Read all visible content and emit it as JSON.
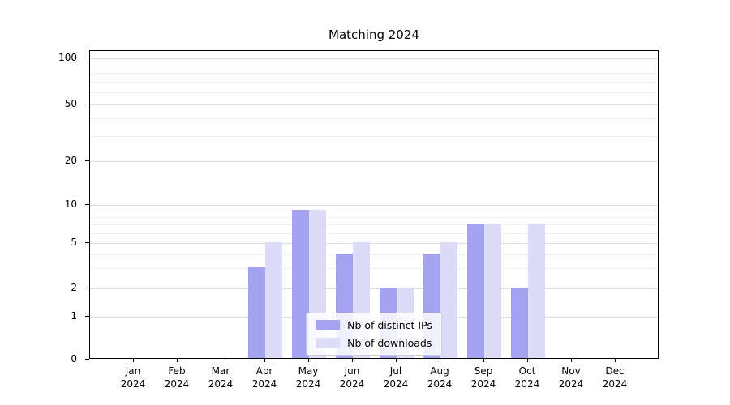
{
  "chart_data": {
    "type": "bar",
    "title": "Matching 2024",
    "categories": [
      "Jan",
      "Feb",
      "Mar",
      "Apr",
      "May",
      "Jun",
      "Jul",
      "Aug",
      "Sep",
      "Oct",
      "Nov",
      "Dec"
    ],
    "category_year": "2024",
    "series": [
      {
        "name": "Nb of distinct IPs",
        "color": "#a3a3ef",
        "values": [
          0,
          0,
          0,
          3,
          9,
          4,
          2,
          4,
          7,
          2,
          0,
          0
        ]
      },
      {
        "name": "Nb of downloads",
        "color": "#dcdcf9",
        "values": [
          0,
          0,
          0,
          5,
          9,
          5,
          2,
          5,
          7,
          7,
          0,
          0
        ]
      }
    ],
    "y_ticks": [
      0,
      1,
      2,
      5,
      10,
      20,
      50,
      100
    ],
    "y_minor_gridlines": [
      3,
      4,
      6,
      7,
      8,
      9,
      30,
      40,
      60,
      70,
      80,
      90
    ],
    "y_scale": "symlog",
    "ylim": [
      0,
      115
    ],
    "grid": true,
    "legend_position": "lower center"
  }
}
